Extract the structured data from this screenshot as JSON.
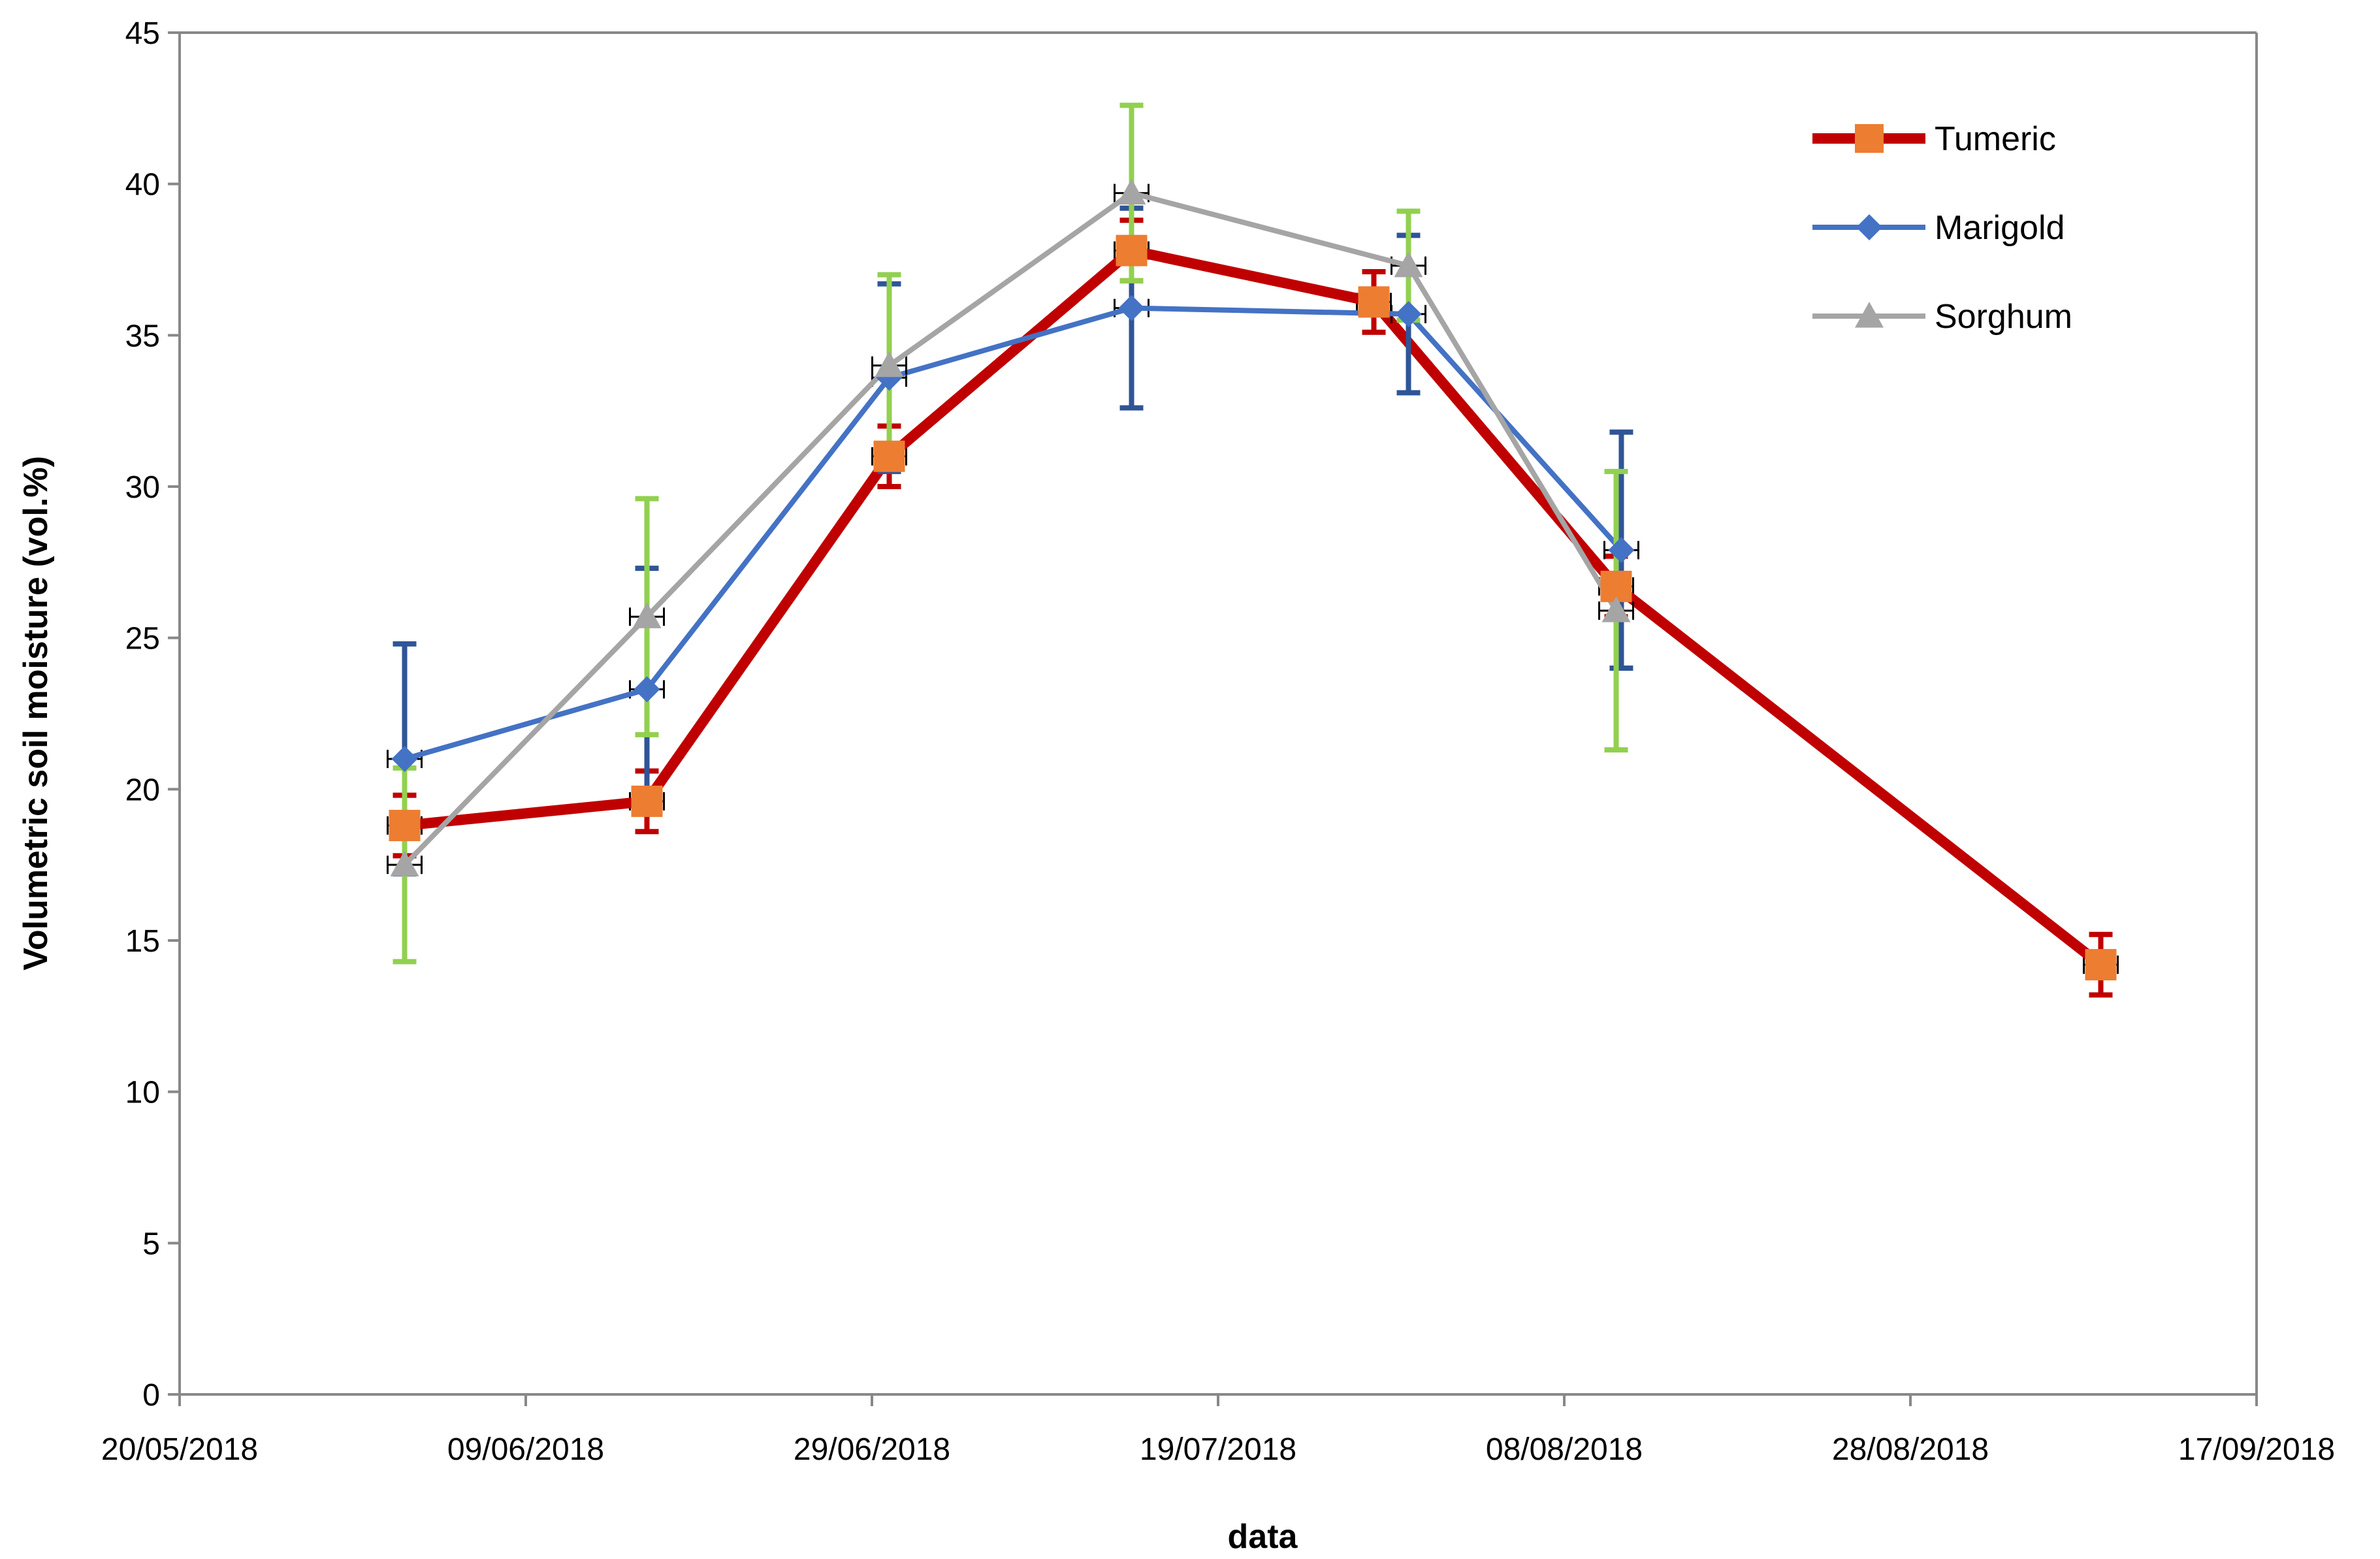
{
  "chart_data": {
    "type": "line",
    "title": "",
    "xlabel": "data",
    "ylabel": "Volumetric soil moisture (vol.%)",
    "x_is_day_offset_from": "20/05/2018",
    "xlim": [
      0,
      120
    ],
    "ylim": [
      0,
      45
    ],
    "x_ticks": [
      {
        "day": 0,
        "label": "20/05/2018"
      },
      {
        "day": 20,
        "label": "09/06/2018"
      },
      {
        "day": 40,
        "label": "29/06/2018"
      },
      {
        "day": 60,
        "label": "19/07/2018"
      },
      {
        "day": 80,
        "label": "08/08/2018"
      },
      {
        "day": 100,
        "label": "28/08/2018"
      },
      {
        "day": 120,
        "label": "17/09/2018"
      }
    ],
    "y_ticks": [
      0,
      5,
      10,
      15,
      20,
      25,
      30,
      35,
      40,
      45
    ],
    "legend_position": "top-right",
    "series": [
      {
        "name": "Tumeric",
        "color": "#C00000",
        "marker": "square",
        "marker_color": "#ED7D31",
        "error_color": "#C00000",
        "points": [
          {
            "x": 13,
            "y": 18.8,
            "err": 1.0
          },
          {
            "x": 27,
            "y": 19.6,
            "err": 1.0
          },
          {
            "x": 41,
            "y": 31.0,
            "err": 1.0
          },
          {
            "x": 55,
            "y": 37.8,
            "err": 1.0
          },
          {
            "x": 69,
            "y": 36.1,
            "err": 1.0
          },
          {
            "x": 83,
            "y": 26.7,
            "err": 1.0
          },
          {
            "x": 111,
            "y": 14.2,
            "err": 1.0
          }
        ]
      },
      {
        "name": "Marigold",
        "color": "#4472C4",
        "marker": "diamond",
        "marker_color": "#4472C4",
        "error_color": "#2F5597",
        "points": [
          {
            "x": 13,
            "y": 21.0,
            "err": 3.8
          },
          {
            "x": 27,
            "y": 23.3,
            "err": 4.0
          },
          {
            "x": 41,
            "y": 33.6,
            "err": 3.1
          },
          {
            "x": 55,
            "y": 35.9,
            "err": 3.3
          },
          {
            "x": 71,
            "y": 35.7,
            "err": 2.6
          },
          {
            "x": 83.3,
            "y": 27.9,
            "err": 3.9
          }
        ]
      },
      {
        "name": "Sorghum",
        "color": "#A5A5A5",
        "marker": "triangle",
        "marker_color": "#A5A5A5",
        "error_color": "#92D050",
        "points": [
          {
            "x": 13,
            "y": 17.5,
            "err": 3.2
          },
          {
            "x": 27,
            "y": 25.7,
            "err": 3.9
          },
          {
            "x": 41,
            "y": 34.0,
            "err": 3.0
          },
          {
            "x": 55,
            "y": 39.7,
            "err": 2.9
          },
          {
            "x": 71,
            "y": 37.3,
            "err": 1.8
          },
          {
            "x": 83,
            "y": 25.9,
            "err": 4.6
          }
        ]
      }
    ]
  }
}
